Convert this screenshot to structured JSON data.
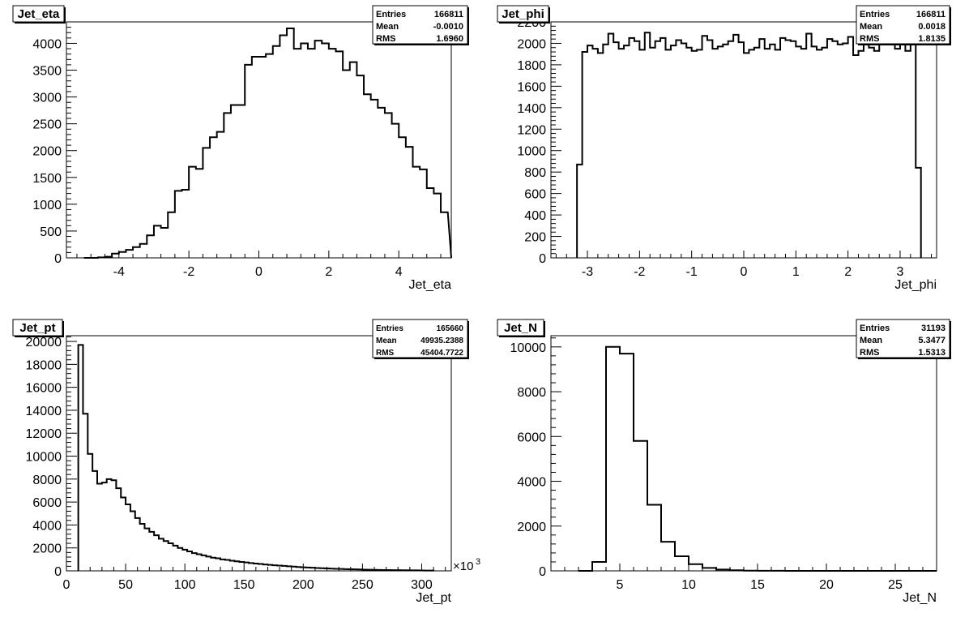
{
  "chart_data": [
    {
      "type": "histogram",
      "title": "Jet_eta",
      "xlabel": "Jet_eta",
      "xlim": [
        -5.5,
        5.5
      ],
      "ylim": [
        0,
        4400
      ],
      "xticks": [
        -4,
        -2,
        0,
        2,
        4
      ],
      "yticks": [
        0,
        500,
        1000,
        1500,
        2000,
        2500,
        3000,
        3500,
        4000
      ],
      "xtick_labels": [
        "-4",
        "-2",
        "0",
        "2",
        "4"
      ],
      "ytick_labels": [
        "0",
        "500",
        "1000",
        "1500",
        "2000",
        "2500",
        "3000",
        "3500",
        "4000"
      ],
      "bin_width": 0.2,
      "bin_start": -5.0,
      "values": [
        0,
        0,
        10,
        20,
        80,
        110,
        150,
        200,
        260,
        420,
        600,
        560,
        850,
        1250,
        1270,
        1700,
        1660,
        2050,
        2250,
        2350,
        2700,
        2850,
        2850,
        3600,
        3750,
        3750,
        3800,
        3950,
        4150,
        4280,
        3900,
        4000,
        3900,
        4050,
        4000,
        3900,
        3850,
        3500,
        3650,
        3400,
        3050,
        2950,
        2800,
        2700,
        2500,
        2250,
        2070,
        1700,
        1650,
        1300,
        1200,
        850,
        900,
        560,
        600,
        420,
        270,
        200,
        140,
        100,
        70,
        20,
        10
      ],
      "stats": {
        "rows": [
          {
            "label": "Entries",
            "value": "166811"
          },
          {
            "label": "Mean",
            "value": "-0.0010"
          },
          {
            "label": "RMS",
            "value": "1.6960"
          }
        ]
      }
    },
    {
      "type": "histogram",
      "title": "Jet_phi",
      "xlabel": "Jet_phi",
      "xlim": [
        -3.7,
        3.7
      ],
      "ylim": [
        0,
        2200
      ],
      "xticks": [
        -3,
        -2,
        -1,
        0,
        1,
        2,
        3
      ],
      "yticks": [
        0,
        200,
        400,
        600,
        800,
        1000,
        1200,
        1400,
        1600,
        1800,
        2000,
        2200
      ],
      "xtick_labels": [
        "-3",
        "-2",
        "-1",
        "0",
        "1",
        "2",
        "3"
      ],
      "ytick_labels": [
        "0",
        "200",
        "400",
        "600",
        "800",
        "1000",
        "1200",
        "1400",
        "1600",
        "1800",
        "2000",
        "2200"
      ],
      "bin_width": 0.1,
      "bin_start": -3.2,
      "values": [
        870,
        1920,
        1980,
        1950,
        1910,
        1990,
        2090,
        2010,
        1950,
        1980,
        2050,
        2020,
        1940,
        2100,
        1960,
        2020,
        2050,
        1940,
        1980,
        2030,
        2000,
        1960,
        1930,
        1940,
        2070,
        2030,
        1950,
        1970,
        1990,
        2020,
        2080,
        2010,
        1910,
        1940,
        1960,
        2040,
        1950,
        1990,
        1940,
        2050,
        2030,
        2020,
        1970,
        1950,
        2090,
        1970,
        1940,
        1960,
        2040,
        2020,
        1990,
        2000,
        2060,
        1890,
        1930,
        2030,
        1960,
        1930,
        2030,
        2080,
        2000,
        1950,
        2030,
        1930,
        1990,
        840
      ],
      "stats": {
        "rows": [
          {
            "label": "Entries",
            "value": "166811"
          },
          {
            "label": "Mean",
            "value": "0.0018"
          },
          {
            "label": "RMS",
            "value": "1.8135"
          }
        ]
      }
    },
    {
      "type": "histogram",
      "title": "Jet_pt",
      "xlabel": "Jet_pt",
      "x_exponent": "×10",
      "x_exponent_power": "3",
      "xlim": [
        0,
        325
      ],
      "ylim": [
        0,
        20500
      ],
      "xticks": [
        0,
        50,
        100,
        150,
        200,
        250,
        300
      ],
      "yticks": [
        0,
        2000,
        4000,
        6000,
        8000,
        10000,
        12000,
        14000,
        16000,
        18000,
        20000
      ],
      "xtick_labels": [
        "0",
        "50",
        "100",
        "150",
        "200",
        "250",
        "300"
      ],
      "ytick_labels": [
        "0",
        "2000",
        "4000",
        "6000",
        "8000",
        "10000",
        "12000",
        "14000",
        "16000",
        "18000",
        "20000"
      ],
      "bin_width": 4,
      "bin_start": 10,
      "values": [
        19700,
        13700,
        10200,
        8700,
        7600,
        7700,
        8000,
        7900,
        7200,
        6400,
        5800,
        5200,
        4600,
        4100,
        3700,
        3400,
        3100,
        2800,
        2600,
        2400,
        2200,
        2000,
        1850,
        1700,
        1550,
        1450,
        1350,
        1250,
        1150,
        1100,
        1000,
        950,
        880,
        830,
        780,
        730,
        680,
        640,
        600,
        560,
        520,
        490,
        460,
        430,
        400,
        370,
        340,
        310,
        290,
        270,
        250,
        230,
        210,
        195,
        180,
        165,
        150,
        140,
        130,
        120,
        110,
        100,
        90,
        80,
        75,
        70,
        65,
        60,
        55,
        50,
        45,
        40,
        35,
        30,
        28
      ],
      "stats": {
        "rows": [
          {
            "label": "Entries",
            "value": "165660"
          },
          {
            "label": "Mean",
            "value": "49935.2388"
          },
          {
            "label": "RMS",
            "value": "45404.7722"
          }
        ]
      }
    },
    {
      "type": "histogram",
      "title": "Jet_N",
      "xlabel": "Jet_N",
      "xlim": [
        0,
        28
      ],
      "ylim": [
        0,
        10500
      ],
      "xticks": [
        5,
        10,
        15,
        20,
        25
      ],
      "yticks": [
        0,
        2000,
        4000,
        6000,
        8000,
        10000
      ],
      "xtick_labels": [
        "5",
        "10",
        "15",
        "20",
        "25"
      ],
      "ytick_labels": [
        "0",
        "2000",
        "4000",
        "6000",
        "8000",
        "10000"
      ],
      "bin_width": 1,
      "bin_start": 2,
      "values": [
        0,
        400,
        10000,
        9700,
        5800,
        2950,
        1300,
        650,
        300,
        130,
        60,
        25,
        10,
        5,
        3,
        2,
        1,
        1,
        0,
        0,
        0,
        0,
        0,
        0,
        0,
        0
      ],
      "stats": {
        "rows": [
          {
            "label": "Entries",
            "value": "31193"
          },
          {
            "label": "Mean",
            "value": "5.3477"
          },
          {
            "label": "RMS",
            "value": "1.5313"
          }
        ]
      }
    }
  ]
}
